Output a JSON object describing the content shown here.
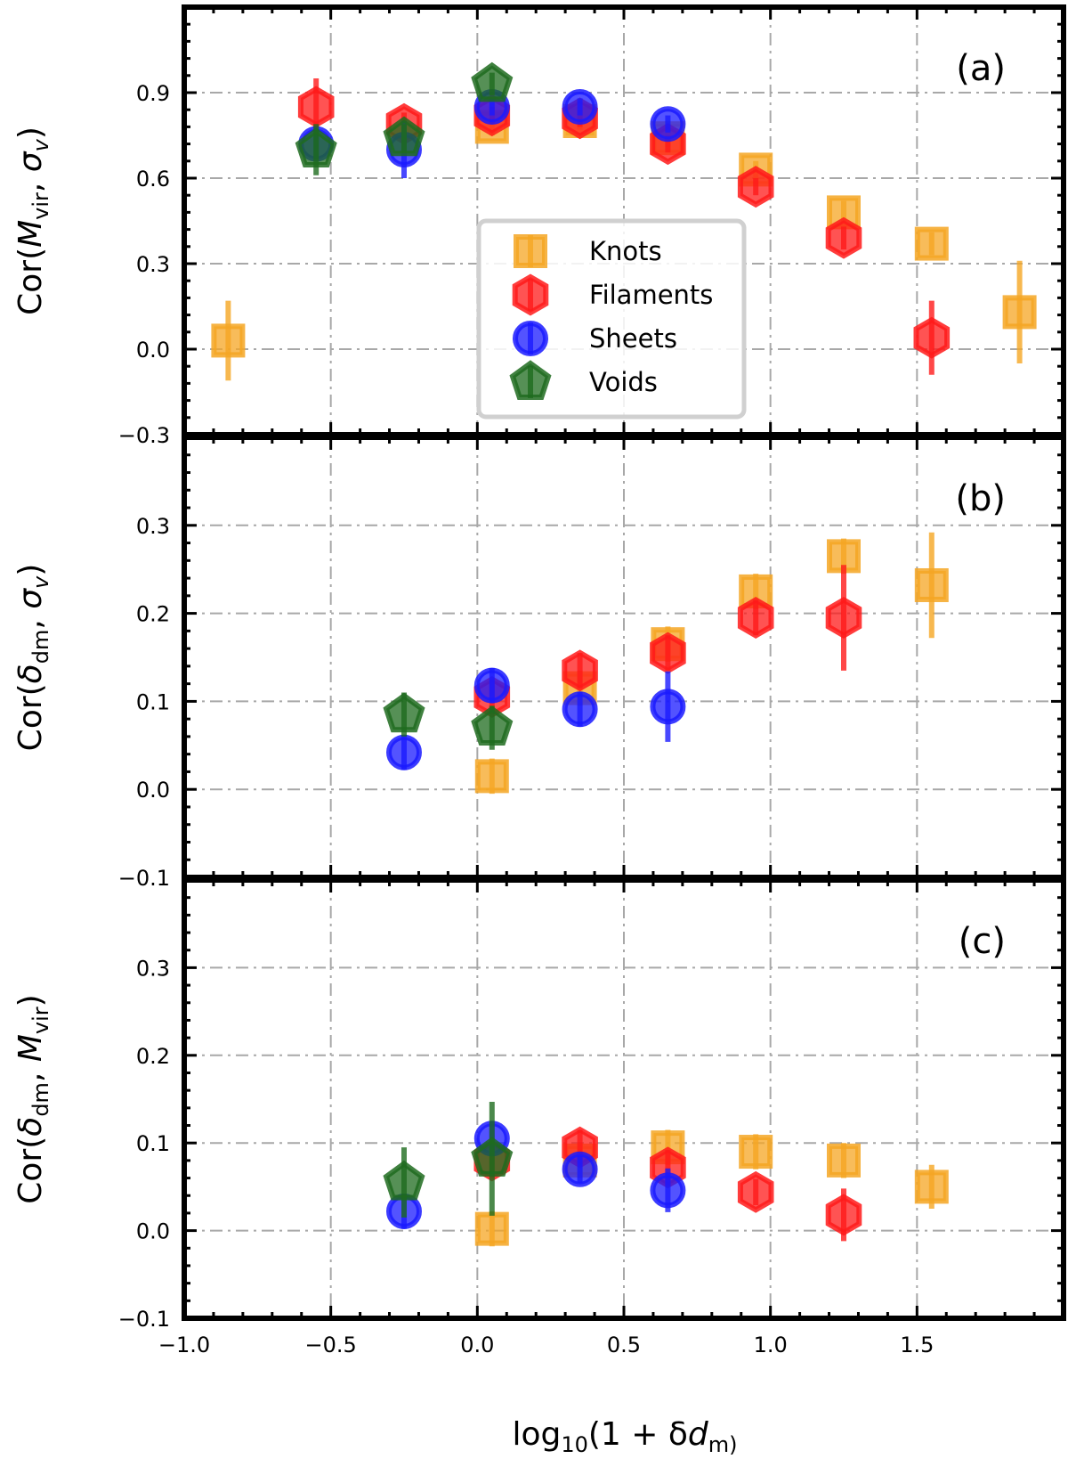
{
  "chart_data": {
    "type": "scatter",
    "xlabel": "log10(1 + δdm)",
    "xlim": [
      -1.0,
      2.0
    ],
    "x_ticks": [
      "−1.0",
      "−0.5",
      "0.0",
      "0.5",
      "1.0",
      "1.5"
    ],
    "legend": {
      "position": "center",
      "entries": [
        "Knots",
        "Filaments",
        "Sheets",
        "Voids"
      ]
    },
    "series_styles": {
      "Knots": {
        "color": "#f5a623",
        "marker": "square"
      },
      "Filaments": {
        "color": "#ff1a1a",
        "marker": "hexagon"
      },
      "Sheets": {
        "color": "#1a1aff",
        "marker": "circle"
      },
      "Voids": {
        "color": "#1e6b1e",
        "marker": "pentagon"
      }
    },
    "panels": [
      {
        "id": "a",
        "label": "(a)",
        "ylabel": {
          "main": "Cor(",
          "sym1": "M",
          "sub1": "vir",
          "sep": ", ",
          "sym2": "σ",
          "sub2": "v",
          "close": ")"
        },
        "ylim": [
          -0.3,
          1.2
        ],
        "y_ticks": [
          "−0.3",
          "0.0",
          "0.3",
          "0.6",
          "0.9"
        ],
        "series": [
          {
            "name": "Knots",
            "points": [
              [
                -0.85,
                0.03,
                0.14
              ],
              [
                0.05,
                0.78,
                0.03
              ],
              [
                0.35,
                0.8,
                0.03
              ],
              [
                0.65,
                0.74,
                0.03
              ],
              [
                0.95,
                0.63,
                0.03
              ],
              [
                1.25,
                0.48,
                0.04
              ],
              [
                1.55,
                0.37,
                0.04
              ],
              [
                1.85,
                0.13,
                0.18
              ]
            ]
          },
          {
            "name": "Filaments",
            "points": [
              [
                -0.55,
                0.85,
                0.1
              ],
              [
                -0.25,
                0.79,
                0.04
              ],
              [
                0.05,
                0.82,
                0.03
              ],
              [
                0.35,
                0.81,
                0.03
              ],
              [
                0.65,
                0.72,
                0.03
              ],
              [
                0.95,
                0.57,
                0.03
              ],
              [
                1.25,
                0.39,
                0.04
              ],
              [
                1.55,
                0.04,
                0.13
              ]
            ]
          },
          {
            "name": "Sheets",
            "points": [
              [
                -0.55,
                0.72,
                0.05
              ],
              [
                -0.25,
                0.7,
                0.1
              ],
              [
                0.05,
                0.85,
                0.03
              ],
              [
                0.35,
                0.85,
                0.03
              ],
              [
                0.65,
                0.79,
                0.03
              ]
            ]
          },
          {
            "name": "Voids",
            "points": [
              [
                -0.55,
                0.7,
                0.09
              ],
              [
                -0.25,
                0.74,
                0.05
              ],
              [
                0.05,
                0.93,
                0.04
              ]
            ]
          }
        ]
      },
      {
        "id": "b",
        "label": "(b)",
        "ylabel": {
          "main": "Cor(",
          "sym1": "δ",
          "sub1": "dm",
          "sep": ", ",
          "sym2": "σ",
          "sub2": "v",
          "close": ")"
        },
        "ylim": [
          -0.1,
          0.4
        ],
        "y_ticks": [
          "−0.1",
          "0.0",
          "0.1",
          "0.2",
          "0.3"
        ],
        "series": [
          {
            "name": "Knots",
            "points": [
              [
                0.05,
                0.015,
                0.02
              ],
              [
                0.35,
                0.115,
                0.02
              ],
              [
                0.65,
                0.165,
                0.02
              ],
              [
                0.95,
                0.225,
                0.02
              ],
              [
                1.25,
                0.265,
                0.02
              ],
              [
                1.55,
                0.232,
                0.06
              ]
            ]
          },
          {
            "name": "Filaments",
            "points": [
              [
                0.05,
                0.105,
                0.02
              ],
              [
                0.35,
                0.135,
                0.02
              ],
              [
                0.65,
                0.155,
                0.02
              ],
              [
                0.95,
                0.195,
                0.02
              ],
              [
                1.25,
                0.195,
                0.06
              ]
            ]
          },
          {
            "name": "Sheets",
            "points": [
              [
                -0.25,
                0.042,
                0.02
              ],
              [
                0.05,
                0.118,
                0.02
              ],
              [
                0.35,
                0.091,
                0.02
              ],
              [
                0.65,
                0.094,
                0.04
              ]
            ]
          },
          {
            "name": "Voids",
            "points": [
              [
                -0.25,
                0.085,
                0.025
              ],
              [
                0.05,
                0.07,
                0.025
              ]
            ]
          }
        ]
      },
      {
        "id": "c",
        "label": "(c)",
        "ylabel": {
          "main": "Cor(",
          "sym1": "δ",
          "sub1": "dm",
          "sep": ", ",
          "sym2": "M",
          "sub2": "vir",
          "close": ")"
        },
        "ylim": [
          -0.1,
          0.4
        ],
        "y_ticks": [
          "−0.1",
          "0.0",
          "0.1",
          "0.2",
          "0.3"
        ],
        "series": [
          {
            "name": "Knots",
            "points": [
              [
                0.05,
                0.002,
                0.02
              ],
              [
                0.35,
                0.08,
                0.02
              ],
              [
                0.65,
                0.095,
                0.02
              ],
              [
                0.95,
                0.09,
                0.02
              ],
              [
                1.25,
                0.08,
                0.02
              ],
              [
                1.55,
                0.05,
                0.025
              ]
            ]
          },
          {
            "name": "Filaments",
            "points": [
              [
                0.05,
                0.08,
                0.02
              ],
              [
                0.35,
                0.095,
                0.02
              ],
              [
                0.65,
                0.072,
                0.02
              ],
              [
                0.95,
                0.044,
                0.015
              ],
              [
                1.25,
                0.018,
                0.03
              ]
            ]
          },
          {
            "name": "Sheets",
            "points": [
              [
                -0.25,
                0.022,
                0.02
              ],
              [
                0.05,
                0.105,
                0.02
              ],
              [
                0.35,
                0.07,
                0.015
              ],
              [
                0.65,
                0.046,
                0.025
              ]
            ]
          },
          {
            "name": "Voids",
            "points": [
              [
                -0.25,
                0.055,
                0.04
              ],
              [
                0.05,
                0.082,
                0.065
              ]
            ]
          }
        ]
      }
    ]
  }
}
